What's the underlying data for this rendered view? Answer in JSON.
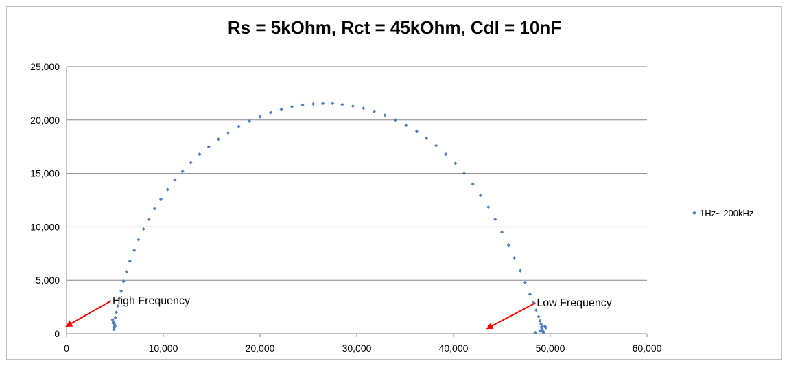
{
  "chart_data": {
    "type": "scatter",
    "title": "Rs = 5kOhm, Rct = 45kOhm, Cdl = 10nF",
    "xlabel": "",
    "ylabel": "",
    "xlim": [
      0,
      60000
    ],
    "ylim": [
      0,
      25000
    ],
    "x_ticks": [
      "0",
      "10,000",
      "20,000",
      "30,000",
      "40,000",
      "50,000",
      "60,000"
    ],
    "y_ticks": [
      "0",
      "5,000",
      "10,000",
      "15,000",
      "20,000",
      "25,000"
    ],
    "grid": "horizontal",
    "legend_position": "right",
    "series": [
      {
        "name": "1Hz~ 200kHz",
        "color": "#4f81bd",
        "x": [
          4900,
          4950,
          5050,
          5150,
          5300,
          5450,
          5650,
          5900,
          6200,
          6550,
          7000,
          7450,
          7950,
          8500,
          9100,
          9750,
          10450,
          11200,
          12000,
          12850,
          13750,
          14700,
          15700,
          16700,
          17800,
          18900,
          20000,
          21100,
          22200,
          23300,
          24400,
          25500,
          26500,
          27500,
          28500,
          29600,
          30700,
          31800,
          32900,
          34000,
          35100,
          36200,
          37200,
          38200,
          39200,
          40200,
          41100,
          42000,
          42800,
          43600,
          44300,
          45000,
          45700,
          46300,
          46900,
          47400,
          47900,
          48250,
          48550,
          48800,
          48950,
          49050,
          49100,
          49150,
          49200,
          49250,
          49300,
          48950,
          49450,
          48450,
          49550,
          4750,
          4800,
          4850,
          4950,
          5000,
          4900
        ],
        "y": [
          600,
          1000,
          1500,
          2000,
          2600,
          3300,
          4000,
          4900,
          5800,
          6800,
          7800,
          8800,
          9800,
          10700,
          11700,
          12600,
          13500,
          14400,
          15200,
          16000,
          16800,
          17500,
          18200,
          18800,
          19400,
          19900,
          20300,
          20700,
          21000,
          21250,
          21400,
          21500,
          21550,
          21550,
          21450,
          21300,
          21100,
          20800,
          20450,
          20000,
          19500,
          18950,
          18300,
          17600,
          16800,
          15950,
          15000,
          14000,
          12950,
          11850,
          10700,
          9500,
          8300,
          7100,
          5900,
          4800,
          3700,
          2900,
          2200,
          1600,
          1200,
          900,
          650,
          450,
          300,
          200,
          100,
          250,
          700,
          100,
          550,
          1300,
          1000,
          1100,
          850,
          700,
          400
        ]
      }
    ],
    "annotations": [
      {
        "text": "High Frequency",
        "arrow_to": [
          0,
          700
        ]
      },
      {
        "text": "Low Frequency",
        "arrow_to": [
          43500,
          500
        ]
      }
    ],
    "annotation_color": "#ff0000",
    "gridline_color": "#868686"
  }
}
